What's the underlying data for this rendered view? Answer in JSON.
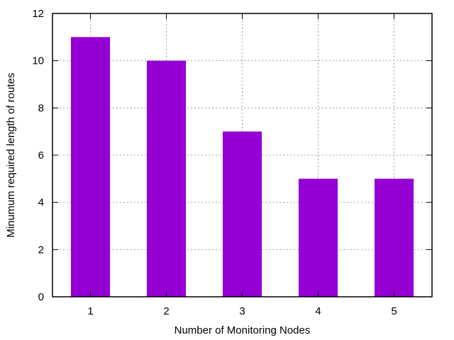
{
  "chart_data": {
    "type": "bar",
    "title": "",
    "categories": [
      "1",
      "2",
      "3",
      "4",
      "5"
    ],
    "values": [
      11,
      10,
      7,
      5,
      5
    ],
    "xlabel": "Number of Monitoring Nodes",
    "ylabel": "Minumum required length of routes",
    "ylim": [
      0,
      12
    ],
    "yticks": [
      "0",
      "2",
      "4",
      "6",
      "8",
      "10",
      "12"
    ],
    "grid": true,
    "legend": "none",
    "colors": {
      "bar": "#9400d3",
      "frame": "#000000",
      "grid": "#a0a0a0"
    }
  }
}
